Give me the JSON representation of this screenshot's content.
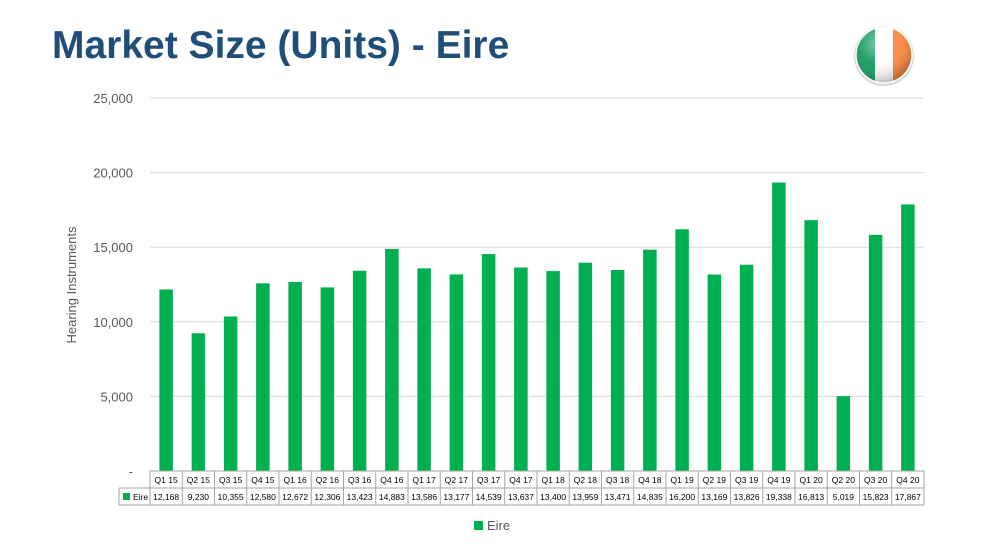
{
  "title": "Market Size (Units) - Eire",
  "flag_icon": "ireland-flag-icon",
  "colors": {
    "bar": "#00b050",
    "title": "#1f4e79",
    "flag_green": "#169b62",
    "flag_white": "#ffffff",
    "flag_orange": "#ff883e"
  },
  "chart_data": {
    "type": "bar",
    "ylabel": "Hearing Instruments",
    "ylim": [
      0,
      25000
    ],
    "yticks": [
      "-",
      "5,000",
      "10,000",
      "15,000",
      "20,000",
      "25,000"
    ],
    "grid": true,
    "legend_position": "bottom",
    "categories": [
      "Q1 15",
      "Q2 15",
      "Q3 15",
      "Q4 15",
      "Q1 16",
      "Q2 16",
      "Q3 16",
      "Q4 16",
      "Q1 17",
      "Q2 17",
      "Q3 17",
      "Q4 17",
      "Q1 18",
      "Q2 18",
      "Q3 18",
      "Q4 18",
      "Q1 19",
      "Q2 19",
      "Q3 19",
      "Q4 19",
      "Q1 20",
      "Q2 20",
      "Q3 20",
      "Q4 20"
    ],
    "series": [
      {
        "name": "Eire",
        "values": [
          12168,
          9230,
          10355,
          12580,
          12672,
          12306,
          13423,
          14883,
          13586,
          13177,
          14539,
          13637,
          13400,
          13959,
          13471,
          14835,
          16200,
          13169,
          13826,
          19338,
          16813,
          5019,
          15823,
          17867
        ],
        "labels": [
          "12,168",
          "9,230",
          "10,355",
          "12,580",
          "12,672",
          "12,306",
          "13,423",
          "14,883",
          "13,586",
          "13,177",
          "14,539",
          "13,637",
          "13,400",
          "13,959",
          "13,471",
          "14,835",
          "16,200",
          "13,169",
          "13,826",
          "19,338",
          "16,813",
          "5,019",
          "15,823",
          "17,867"
        ]
      }
    ]
  }
}
